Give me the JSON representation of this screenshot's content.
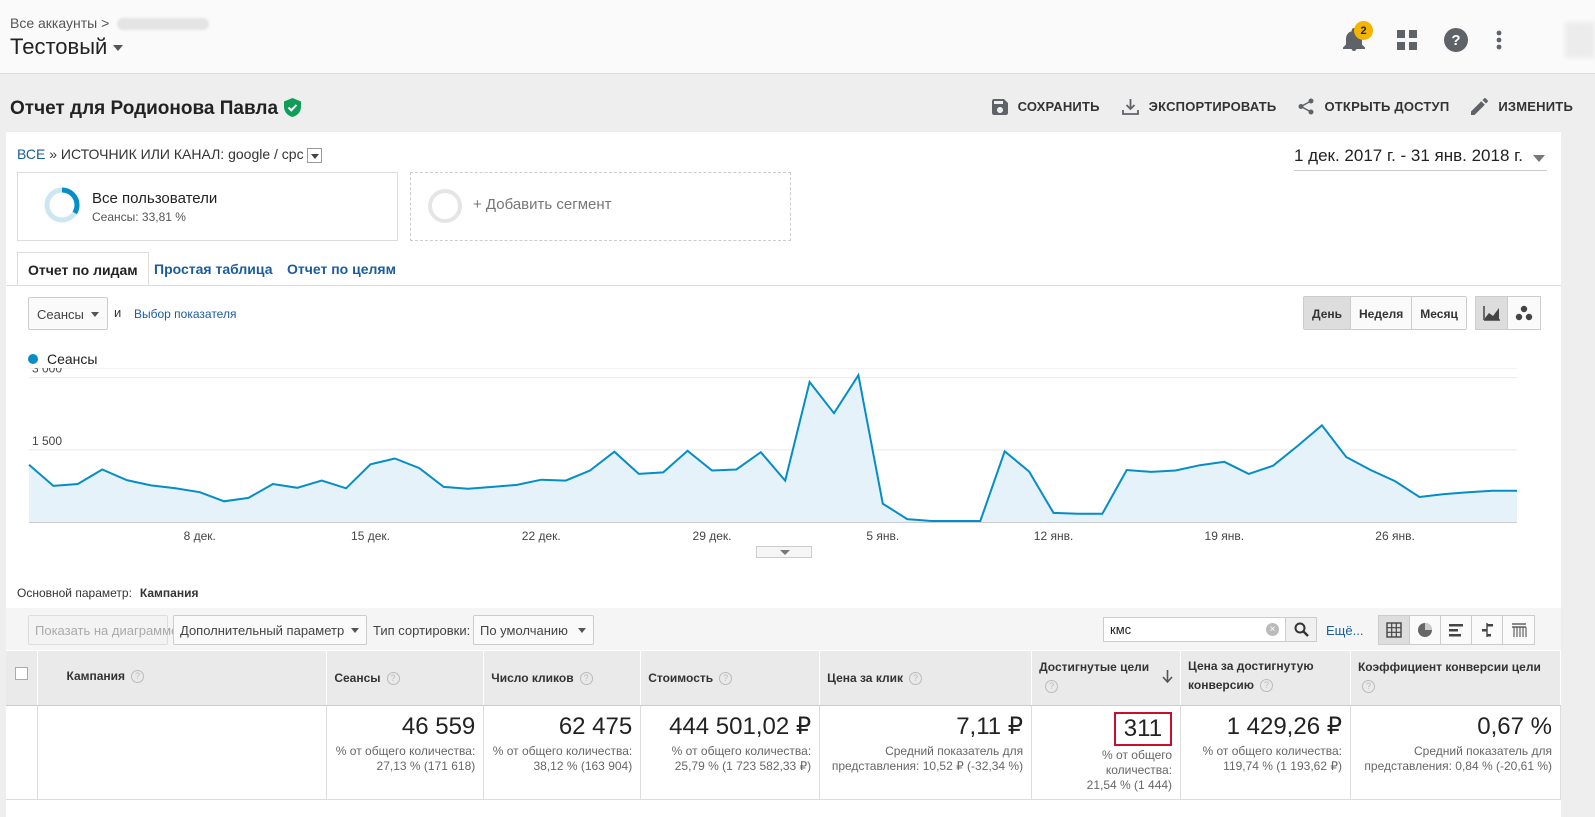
{
  "header": {
    "all_accounts": "Все аккаунты >",
    "account_name": "Тестовый",
    "notification_count": "2"
  },
  "report": {
    "title": "Отчет для Родионова Павла",
    "actions": [
      "СОХРАНИТЬ",
      "ЭКСПОРТИРОВАТЬ",
      "ОТКРЫТЬ ДОСТУП",
      "ИЗМЕНИТЬ"
    ]
  },
  "breadcrumb": {
    "all": "ВСЕ",
    "sep": "»",
    "filter": "ИСТОЧНИК ИЛИ КАНАЛ: google / cpc"
  },
  "date_range": "1 дек. 2017 г. - 31 янв. 2018 г.",
  "segments": {
    "primary_name": "Все пользователи",
    "primary_sub": "Сеансы: 33,81 %",
    "primary_fraction": 0.3381,
    "add_label": "+ Добавить сегмент"
  },
  "tabs": [
    "Отчет по лидам",
    "Простая таблица",
    "Отчет по целям"
  ],
  "chart_controls": {
    "metric": "Сеансы",
    "and": "и",
    "pick_metric": "Выбор показателя",
    "periods": [
      "День",
      "Неделя",
      "Месяц"
    ]
  },
  "chart_data": {
    "type": "area",
    "series": [
      {
        "name": "Сеансы",
        "color": "#058dc7",
        "values": [
          1190,
          750,
          790,
          1090,
          870,
          760,
          700,
          620,
          430,
          500,
          790,
          710,
          860,
          700,
          1200,
          1320,
          1120,
          730,
          690,
          730,
          770,
          880,
          860,
          1070,
          1460,
          1000,
          1030,
          1480,
          1070,
          1090,
          1450,
          860,
          2910,
          2260,
          3050,
          380,
          60,
          20,
          20,
          20,
          1470,
          1050,
          190,
          170,
          170,
          1080,
          1040,
          1070,
          1180,
          1250,
          1000,
          1170,
          1580,
          2010,
          1350,
          1080,
          850,
          520,
          580,
          620,
          650,
          650
        ]
      }
    ],
    "x_ticks": [
      "8 дек.",
      "15 дек.",
      "22 дек.",
      "29 дек.",
      "5 янв.",
      "12 янв.",
      "19 янв.",
      "26 янв."
    ],
    "y_ticks": [
      "1 500",
      "3 000"
    ],
    "ylim": [
      0,
      3200
    ]
  },
  "dimension": {
    "label": "Основной параметр:",
    "value": "Кампания"
  },
  "toolbar": {
    "show_chart": "Показать на диаграмме",
    "secondary": "Дополнительный параметр",
    "sort_label": "Тип сортировки:",
    "sort_value": "По умолчанию",
    "search_value": "кмс",
    "more": "Ещё..."
  },
  "table": {
    "headers": [
      "Кампания",
      "Сеансы",
      "Число кликов",
      "Стоимость",
      "Цена за клик",
      "Достигнутые цели",
      "Цена за достигнутую конверсию",
      "Коэффициент конверсии цели"
    ],
    "totals": [
      {
        "value": "46 559",
        "sub": "% от общего количества: 27,13 % (171 618)"
      },
      {
        "value": "62 475",
        "sub": "% от общего количества: 38,12 % (163 904)"
      },
      {
        "value": "444 501,02 ₽",
        "sub": "% от общего количества: 25,79 % (1 723 582,33 ₽)"
      },
      {
        "value": "7,11 ₽",
        "sub": "Средний показатель для представления: 10,52 ₽ (-32,34 %)"
      },
      {
        "value": "311",
        "sub": "% от общего количества: 21,54 % (1 444)"
      },
      {
        "value": "1 429,26 ₽",
        "sub": "% от общего количества: 119,74 % (1 193,62 ₽)"
      },
      {
        "value": "0,67 %",
        "sub": "Средний показатель для представления: 0,84 % (-20,61 %)"
      }
    ]
  }
}
